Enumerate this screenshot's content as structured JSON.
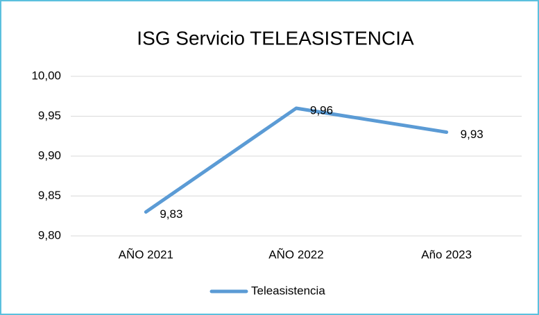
{
  "chart_data": {
    "type": "line",
    "title": "ISG Servicio TELEASISTENCIA",
    "categories": [
      "AÑO 2021",
      "AÑO 2022",
      "Año 2023"
    ],
    "series": [
      {
        "name": "Teleasistencia",
        "color": "#5b9bd5",
        "values": [
          9.83,
          9.96,
          9.93
        ],
        "value_labels": [
          "9,83",
          "9,96",
          "9,93"
        ]
      }
    ],
    "ylim": [
      9.8,
      10
    ],
    "yticks": [
      {
        "value": 9.8,
        "label": "9,80"
      },
      {
        "value": 9.85,
        "label": "9,85"
      },
      {
        "value": 9.9,
        "label": "9,90"
      },
      {
        "value": 9.95,
        "label": "9,95"
      },
      {
        "value": 10,
        "label": "10,00"
      }
    ],
    "grid": true,
    "legend": "bottom"
  }
}
